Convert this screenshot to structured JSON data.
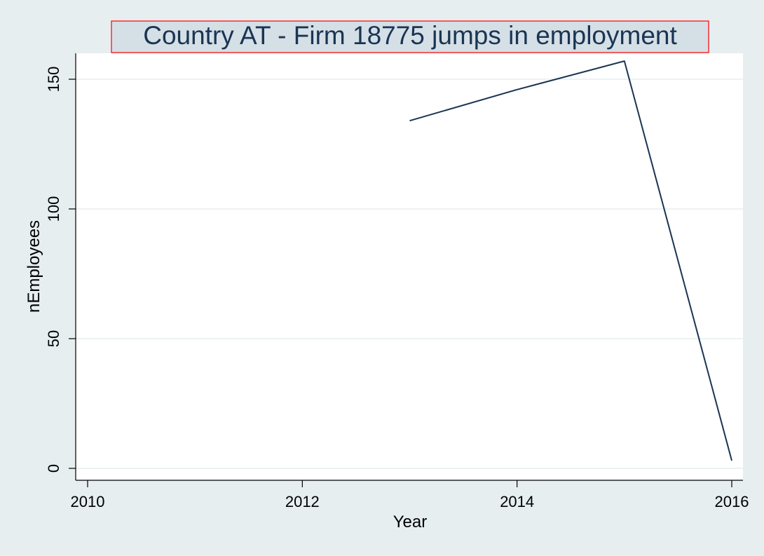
{
  "chart_data": {
    "type": "line",
    "title": "Country AT - Firm 18775  jumps in employment",
    "xlabel": "Year",
    "ylabel": "nEmployees",
    "xlim": [
      2010,
      2016
    ],
    "ylim": [
      0,
      160
    ],
    "xticks": [
      2010,
      2012,
      2014,
      2016
    ],
    "yticks": [
      0,
      50,
      100,
      150
    ],
    "grid": true,
    "series": [
      {
        "x": [
          2013,
          2014,
          2015,
          2016
        ],
        "y": [
          134,
          146,
          157,
          3
        ],
        "color": "#1a3553"
      }
    ]
  },
  "colors": {
    "page_background": "#e6eef0",
    "plot_background": "#ffffff",
    "gridline": "#e6eef0",
    "title_box_fill": "#d5dfe6",
    "title_box_border": "#ff0000",
    "title_text": "#1a3553"
  }
}
